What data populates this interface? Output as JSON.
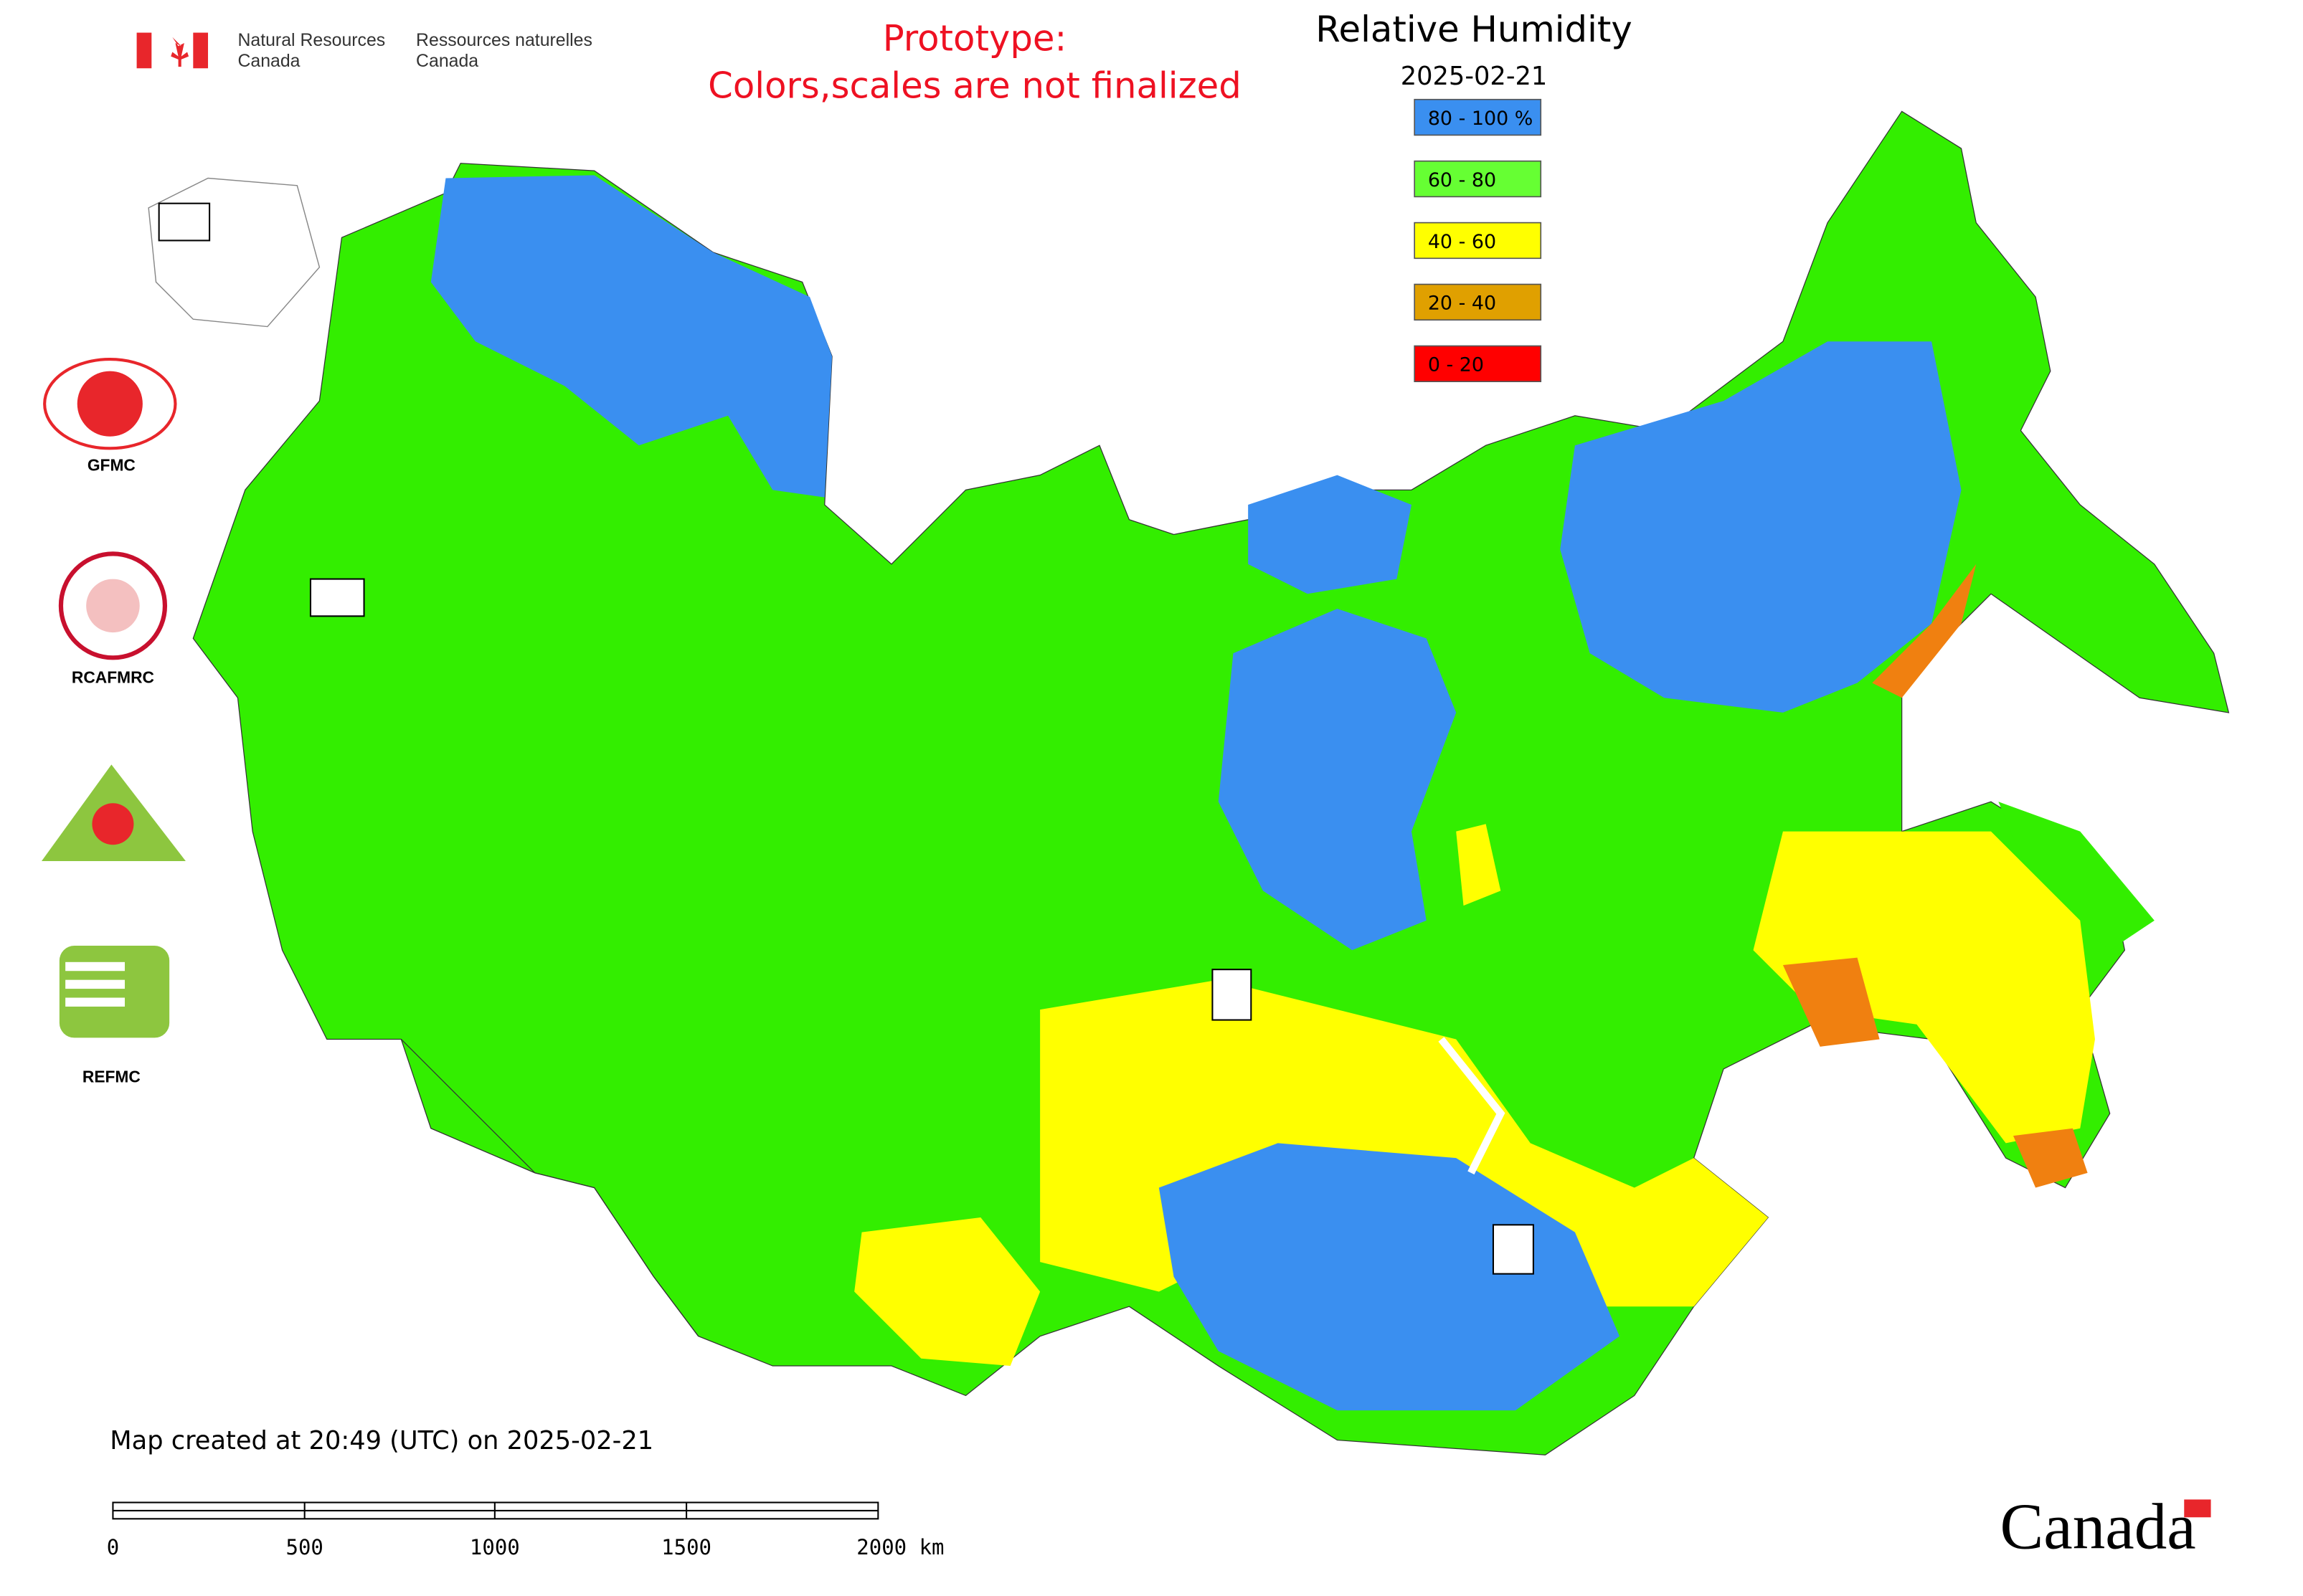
{
  "header": {
    "org_en": [
      "Natural Resources",
      "Canada"
    ],
    "org_fr": [
      "Ressources naturelles",
      "Canada"
    ]
  },
  "notice": [
    "Prototype:",
    "Colors,scales are not finalized"
  ],
  "map": {
    "title": "Relative Humidity",
    "date": "2025-02-21",
    "legend": [
      {
        "label": "80 - 100 %",
        "color": "#3a8ff0"
      },
      {
        "label": "60 - 80",
        "color": "#66ff33"
      },
      {
        "label": "40 - 60",
        "color": "#ffff00"
      },
      {
        "label": "20 - 40",
        "color": "#e0a000"
      },
      {
        "label": "0 - 20",
        "color": "#ff0000"
      }
    ]
  },
  "logos": [
    "GFMC",
    "RCAFMRC",
    "REFMC"
  ],
  "footer": {
    "created": "Map created at 20:49 (UTC) on 2025-02-21",
    "scale": [
      "0",
      "500",
      "1000",
      "1500",
      "2000 km"
    ],
    "wordmark": "Canada"
  }
}
